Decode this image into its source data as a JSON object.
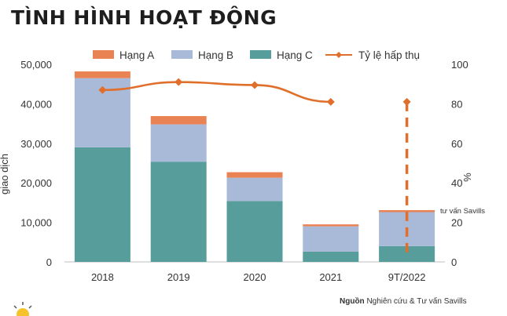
{
  "title": "TÌNH HÌNH HOẠT ĐỘNG",
  "source": {
    "label": "Nguồn",
    "text": "Nghiên cứu & Tư vấn Savills"
  },
  "chart_data": {
    "type": "bar",
    "stacked": true,
    "categories": [
      "2018",
      "2019",
      "2020",
      "2021",
      "9T/2022"
    ],
    "series": [
      {
        "name": "Hạng C",
        "color": "#579d9c",
        "axis": "left",
        "values": [
          29000,
          25300,
          15400,
          2600,
          4000
        ]
      },
      {
        "name": "Hạng B",
        "color": "#a9b9d8",
        "axis": "left",
        "values": [
          17500,
          9500,
          5900,
          6400,
          8600
        ]
      },
      {
        "name": "Hạng A",
        "color": "#ea8354",
        "axis": "left",
        "values": [
          1700,
          2100,
          1400,
          500,
          500
        ]
      }
    ],
    "line_series": {
      "name": "Tỷ lệ hấp thụ",
      "color": "#e06f2b",
      "axis": "right",
      "values": [
        87,
        91,
        89.5,
        81,
        81
      ],
      "dashed_last_segment": true
    },
    "legend_order": [
      "Hạng A",
      "Hạng B",
      "Hạng C",
      "Tỷ lệ hấp thụ"
    ],
    "y_left": {
      "label": "giao dịch",
      "ticks": [
        "0",
        "10,000",
        "20,000",
        "30,000",
        "40,000",
        "50,000"
      ],
      "lim": [
        0,
        50000
      ]
    },
    "y_right": {
      "label": "%",
      "ticks": [
        "0",
        "20",
        "40",
        "60",
        "80",
        "100"
      ],
      "lim": [
        0,
        100
      ]
    },
    "annotation": "tư vấn Savills",
    "grid": false,
    "legend_position": "top"
  }
}
